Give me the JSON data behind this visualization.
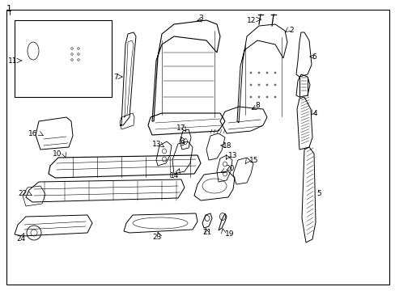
{
  "fig_width": 4.89,
  "fig_height": 3.6,
  "dpi": 100,
  "bg": "#ffffff",
  "border_lw": 0.8,
  "label_fs": 6.5,
  "arrow_lw": 0.5,
  "part_lw": 0.6
}
